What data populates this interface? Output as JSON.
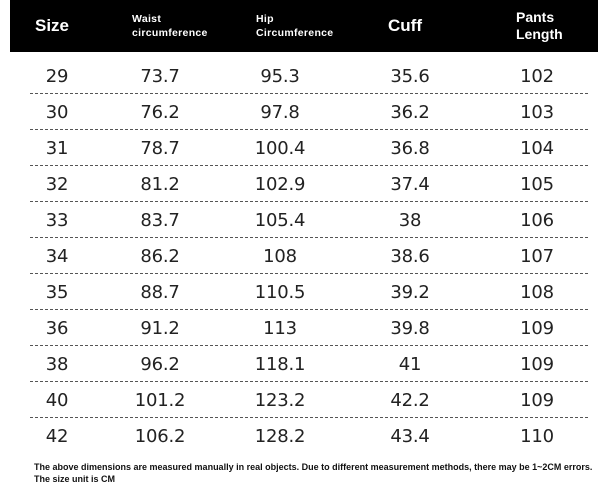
{
  "table": {
    "headers": [
      {
        "label": "Size",
        "style": "big"
      },
      {
        "label": "Waist\ncircumference",
        "style": "small"
      },
      {
        "label": "Hip\nCircumference",
        "style": "small"
      },
      {
        "label": "Cuff",
        "style": "big"
      },
      {
        "label": "Pants\nLength",
        "style": "two"
      }
    ],
    "rows": [
      [
        "29",
        "73.7",
        "95.3",
        "35.6",
        "102"
      ],
      [
        "30",
        "76.2",
        "97.8",
        "36.2",
        "103"
      ],
      [
        "31",
        "78.7",
        "100.4",
        "36.8",
        "104"
      ],
      [
        "32",
        "81.2",
        "102.9",
        "37.4",
        "105"
      ],
      [
        "33",
        "83.7",
        "105.4",
        "38",
        "106"
      ],
      [
        "34",
        "86.2",
        "108",
        "38.6",
        "107"
      ],
      [
        "35",
        "88.7",
        "110.5",
        "39.2",
        "108"
      ],
      [
        "36",
        "91.2",
        "113",
        "39.8",
        "109"
      ],
      [
        "38",
        "96.2",
        "118.1",
        "41",
        "109"
      ],
      [
        "40",
        "101.2",
        "123.2",
        "42.2",
        "109"
      ],
      [
        "42",
        "106.2",
        "128.2",
        "43.4",
        "110"
      ]
    ]
  },
  "note": "The above dimensions are measured manually in real objects. Due to different measurement methods, there may be 1~2CM errors. The size unit is CM"
}
